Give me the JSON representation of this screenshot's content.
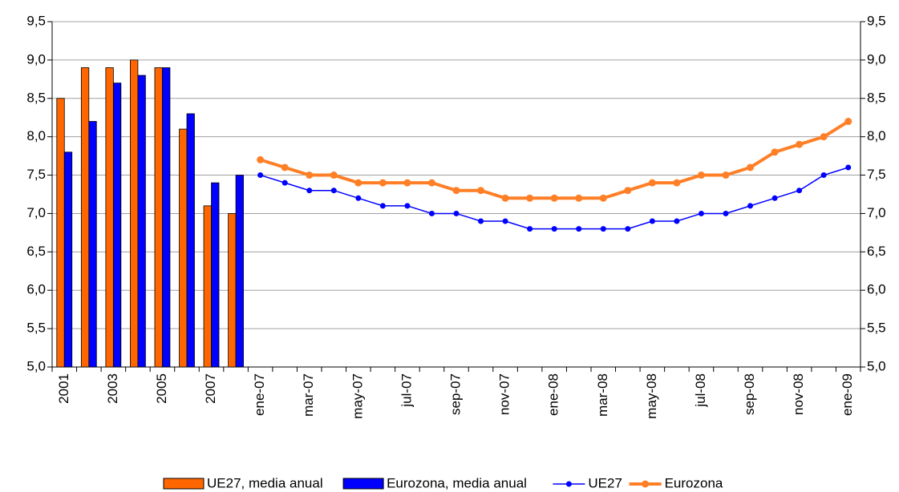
{
  "chart_data": {
    "type": "combo",
    "categories": [
      "2001",
      null,
      "2003",
      null,
      "2005",
      null,
      "2007",
      null,
      "ene-07",
      null,
      "mar-07",
      null,
      "may-07",
      null,
      "jul-07",
      null,
      "sep-07",
      null,
      "nov-07",
      null,
      "ene-08",
      null,
      "mar-08",
      null,
      "may-08",
      null,
      "jul-08",
      null,
      "sep-08",
      null,
      "nov-08",
      null,
      "ene-09"
    ],
    "series": [
      {
        "name": "UE27, media anual",
        "type": "bar",
        "color": "#ff6600",
        "values": [
          8.5,
          8.9,
          8.9,
          9.0,
          8.9,
          8.1,
          7.1,
          7.0,
          null,
          null,
          null,
          null,
          null,
          null,
          null,
          null,
          null,
          null,
          null,
          null,
          null,
          null,
          null,
          null,
          null,
          null,
          null,
          null,
          null,
          null,
          null,
          null,
          null
        ]
      },
      {
        "name": "Eurozona, media anual",
        "type": "bar",
        "color": "#0000ff",
        "values": [
          7.8,
          8.2,
          8.7,
          8.8,
          8.9,
          8.3,
          7.4,
          7.5,
          null,
          null,
          null,
          null,
          null,
          null,
          null,
          null,
          null,
          null,
          null,
          null,
          null,
          null,
          null,
          null,
          null,
          null,
          null,
          null,
          null,
          null,
          null,
          null,
          null
        ]
      },
      {
        "name": "UE27",
        "type": "line",
        "color": "#0000ff",
        "values": [
          null,
          null,
          null,
          null,
          null,
          null,
          null,
          null,
          7.5,
          7.4,
          7.3,
          7.3,
          7.2,
          7.1,
          7.1,
          7.0,
          7.0,
          6.9,
          6.9,
          6.8,
          6.8,
          6.8,
          6.8,
          6.8,
          6.9,
          6.9,
          7.0,
          7.0,
          7.1,
          7.2,
          7.3,
          7.5,
          7.6
        ]
      },
      {
        "name": "Eurozona",
        "type": "line",
        "color": "#ff7f27",
        "axis": "y2",
        "values": [
          null,
          null,
          null,
          null,
          null,
          null,
          null,
          null,
          7.7,
          7.6,
          7.5,
          7.5,
          7.4,
          7.4,
          7.4,
          7.4,
          7.3,
          7.3,
          7.2,
          7.2,
          7.2,
          7.2,
          7.2,
          7.3,
          7.4,
          7.4,
          7.5,
          7.5,
          7.6,
          7.8,
          7.9,
          8.0,
          8.2
        ]
      }
    ],
    "ylim": [
      5.0,
      9.5
    ],
    "yticks": [
      {
        "value": 5.0,
        "label": "5,0"
      },
      {
        "value": 5.5,
        "label": "5,5"
      },
      {
        "value": 6.0,
        "label": "6,0"
      },
      {
        "value": 6.5,
        "label": "6,5"
      },
      {
        "value": 7.0,
        "label": "7,0"
      },
      {
        "value": 7.5,
        "label": "7,5"
      },
      {
        "value": 8.0,
        "label": "8,0"
      },
      {
        "value": 8.5,
        "label": "8,5"
      },
      {
        "value": 9.0,
        "label": "9,0"
      },
      {
        "value": 9.5,
        "label": "9,5"
      }
    ],
    "y2lim": [
      5.0,
      9.5
    ],
    "y2ticks": [
      {
        "value": 5.0,
        "label": "5,0"
      },
      {
        "value": 5.5,
        "label": "5,5"
      },
      {
        "value": 6.0,
        "label": "6,0"
      },
      {
        "value": 6.5,
        "label": "6,5"
      },
      {
        "value": 7.0,
        "label": "7,0"
      },
      {
        "value": 7.5,
        "label": "7,5"
      },
      {
        "value": 8.0,
        "label": "8,0"
      },
      {
        "value": 8.5,
        "label": "8,5"
      },
      {
        "value": 9.0,
        "label": "9,0"
      },
      {
        "value": 9.5,
        "label": "9,5"
      }
    ],
    "grid": true,
    "legend": "bottom"
  }
}
